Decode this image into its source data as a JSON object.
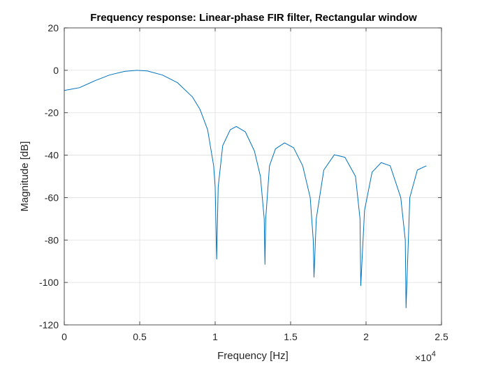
{
  "chart_data": {
    "type": "line",
    "title": "Frequency response: Linear-phase FIR filter, Rectangular window",
    "xlabel": "Frequency [Hz]",
    "ylabel": "Magnitude [dB]",
    "x_exponent": {
      "base": "×10",
      "power": "4"
    },
    "xlim": [
      0,
      25000
    ],
    "ylim": [
      -120,
      20
    ],
    "x_ticks": [
      0,
      5000,
      10000,
      15000,
      20000,
      25000
    ],
    "x_tick_labels": [
      "0",
      "0.5",
      "1",
      "1.5",
      "2",
      "2.5"
    ],
    "y_ticks": [
      20,
      0,
      -20,
      -40,
      -60,
      -80,
      -100,
      -120
    ],
    "y_tick_labels": [
      "20",
      "0",
      "-20",
      "-40",
      "-60",
      "-80",
      "-100",
      "-120"
    ],
    "grid": true,
    "line_color": "#0072BD",
    "series": [
      {
        "x": [
          0,
          1000,
          2000,
          3000,
          4000,
          4800,
          5500,
          6500,
          7500,
          8500,
          9000,
          9500,
          9900,
          10000,
          10100,
          10200,
          10500,
          11000,
          11400,
          12000,
          12600,
          13000,
          13250,
          13300,
          13350,
          13600,
          14000,
          14600,
          15200,
          15800,
          16300,
          16500,
          16550,
          16700,
          17200,
          17900,
          18600,
          19300,
          19600,
          19650,
          19900,
          20400,
          21000,
          21600,
          22300,
          22600,
          22650,
          22900,
          23400,
          24000
        ],
        "y": [
          -9.5,
          -8.2,
          -5,
          -2.2,
          -0.5,
          0,
          -0.3,
          -2.2,
          -5.8,
          -12.6,
          -18.5,
          -28,
          -45,
          -55,
          -89,
          -55,
          -35.5,
          -28,
          -26.5,
          -29,
          -38,
          -50,
          -70,
          -91.5,
          -70,
          -45,
          -37,
          -34.2,
          -36.5,
          -45,
          -60,
          -80,
          -97.5,
          -70,
          -47,
          -39.8,
          -41,
          -50,
          -70,
          -101.5,
          -66,
          -48,
          -43.5,
          -45,
          -60,
          -80,
          -112,
          -60,
          -47,
          -45
        ]
      }
    ]
  }
}
